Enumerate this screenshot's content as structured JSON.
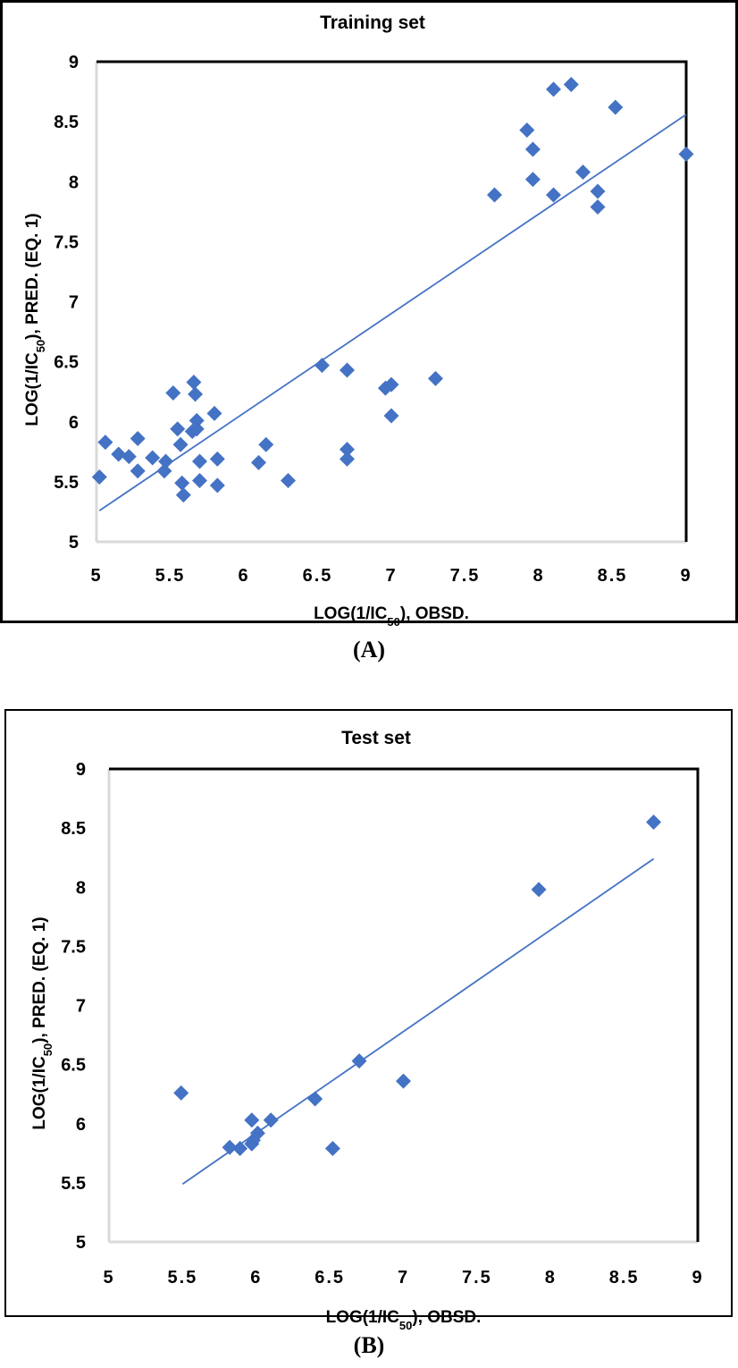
{
  "chart_data": [
    {
      "type": "scatter",
      "title": "Training set",
      "xlabel": "LOG(1/IC50), OBSD.",
      "xlabel_parts": {
        "pre": "LOG(1/IC",
        "sub": "50",
        "post": "), OBSD."
      },
      "ylabel": "LOG(1/IC50), PRED. (EQ. 1)",
      "ylabel_parts": {
        "pre": "LOG(1/IC",
        "sub": "50",
        "post": "), PRED. (EQ. 1)"
      },
      "xlim": [
        5,
        9
      ],
      "ylim": [
        5,
        9
      ],
      "xticks": [
        "5",
        "5.5",
        "6",
        "6.5",
        "7",
        "7.5",
        "8",
        "8.5",
        "9"
      ],
      "yticks": [
        "5",
        "5.5",
        "6",
        "6.5",
        "7",
        "7.5",
        "8",
        "8.5",
        "9"
      ],
      "grid": false,
      "marker": "diamond",
      "color": "#4472C4",
      "caption": "(A)",
      "points": [
        [
          5.02,
          5.54
        ],
        [
          5.06,
          5.83
        ],
        [
          5.15,
          5.73
        ],
        [
          5.22,
          5.71
        ],
        [
          5.28,
          5.86
        ],
        [
          5.28,
          5.59
        ],
        [
          5.38,
          5.7
        ],
        [
          5.47,
          5.67
        ],
        [
          5.46,
          5.59
        ],
        [
          5.52,
          6.24
        ],
        [
          5.55,
          5.94
        ],
        [
          5.57,
          5.81
        ],
        [
          5.58,
          5.49
        ],
        [
          5.59,
          5.39
        ],
        [
          5.66,
          6.33
        ],
        [
          5.67,
          6.23
        ],
        [
          5.65,
          5.92
        ],
        [
          5.68,
          6.01
        ],
        [
          5.68,
          5.94
        ],
        [
          5.7,
          5.67
        ],
        [
          5.7,
          5.51
        ],
        [
          5.8,
          6.07
        ],
        [
          5.82,
          5.69
        ],
        [
          5.82,
          5.47
        ],
        [
          6.1,
          5.66
        ],
        [
          6.15,
          5.81
        ],
        [
          6.3,
          5.51
        ],
        [
          6.53,
          6.47
        ],
        [
          6.7,
          6.43
        ],
        [
          6.7,
          5.77
        ],
        [
          6.7,
          5.69
        ],
        [
          6.96,
          6.28
        ],
        [
          7.0,
          6.31
        ],
        [
          7.0,
          6.05
        ],
        [
          7.3,
          6.36
        ],
        [
          7.7,
          7.89
        ],
        [
          7.92,
          8.43
        ],
        [
          7.96,
          8.27
        ],
        [
          7.96,
          8.02
        ],
        [
          8.1,
          8.77
        ],
        [
          8.1,
          7.89
        ],
        [
          8.22,
          8.81
        ],
        [
          8.3,
          8.08
        ],
        [
          8.4,
          7.92
        ],
        [
          8.4,
          7.79
        ],
        [
          8.52,
          8.62
        ],
        [
          9.0,
          8.23
        ]
      ],
      "trendline": {
        "x": [
          5.02,
          9.0
        ],
        "y": [
          5.26,
          8.56
        ]
      }
    },
    {
      "type": "scatter",
      "title": "Test set",
      "xlabel": "LOG(1/IC50), OBSD.",
      "xlabel_parts": {
        "pre": "LOG(1/IC",
        "sub": "50",
        "post": "), OBSD."
      },
      "ylabel": "LOG(1/IC50), PRED. (EQ. 1)",
      "ylabel_parts": {
        "pre": "LOG(1/IC",
        "sub": "50",
        "post": "), PRED. (EQ. 1)"
      },
      "xlim": [
        5,
        9
      ],
      "ylim": [
        5,
        9
      ],
      "xticks": [
        "5",
        "5.5",
        "6",
        "6.5",
        "7",
        "7.5",
        "8",
        "8.5",
        "9"
      ],
      "yticks": [
        "5",
        "5.5",
        "6",
        "6.5",
        "7",
        "7.5",
        "8",
        "8.5",
        "9"
      ],
      "grid": false,
      "marker": "diamond",
      "color": "#4472C4",
      "caption": "(B)",
      "points": [
        [
          5.49,
          6.26
        ],
        [
          5.82,
          5.8
        ],
        [
          5.89,
          5.79
        ],
        [
          5.97,
          5.83
        ],
        [
          5.97,
          6.03
        ],
        [
          5.98,
          5.86
        ],
        [
          6.01,
          5.92
        ],
        [
          6.1,
          6.03
        ],
        [
          6.4,
          6.21
        ],
        [
          6.52,
          5.79
        ],
        [
          6.7,
          6.53
        ],
        [
          7.0,
          6.36
        ],
        [
          7.92,
          7.98
        ],
        [
          8.7,
          8.55
        ]
      ],
      "trendline": {
        "x": [
          5.5,
          8.7
        ],
        "y": [
          5.49,
          8.24
        ]
      }
    }
  ]
}
